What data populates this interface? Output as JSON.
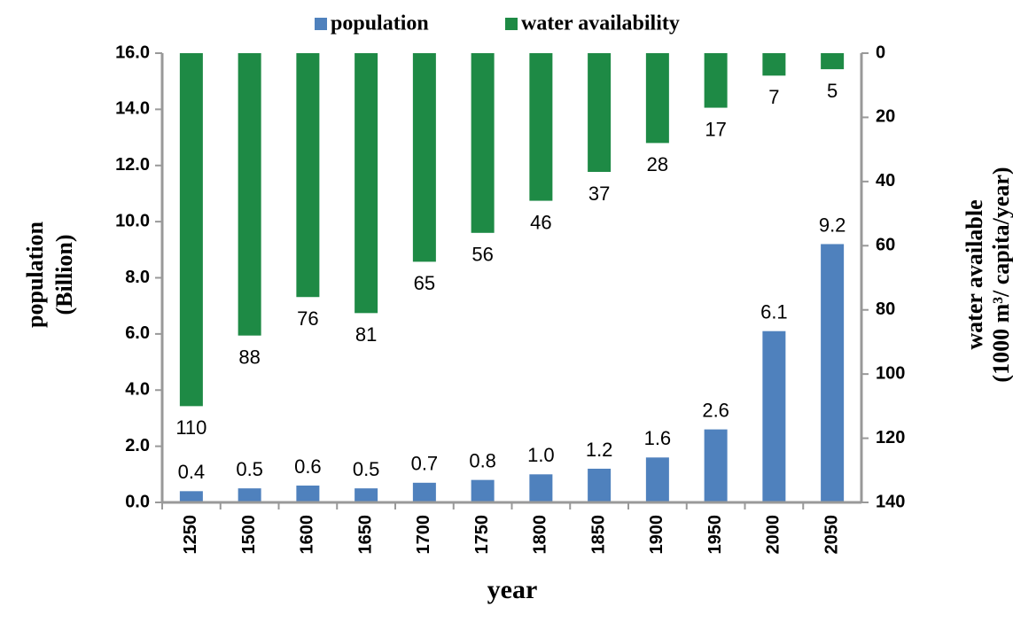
{
  "chart_data": {
    "type": "bar",
    "categories": [
      "1250",
      "1500",
      "1600",
      "1650",
      "1700",
      "1750",
      "1800",
      "1850",
      "1900",
      "1950",
      "2000",
      "2050"
    ],
    "series": [
      {
        "name": "population",
        "color": "#4f81bd",
        "values": [
          0.4,
          0.5,
          0.6,
          0.5,
          0.7,
          0.8,
          1.0,
          1.2,
          1.6,
          2.6,
          6.1,
          9.2
        ],
        "value_labels": [
          "0.4",
          "0.5",
          "0.6",
          "0.5",
          "0.7",
          "0.8",
          "1.0",
          "1.2",
          "1.6",
          "2.6",
          "6.1",
          "9.2"
        ]
      },
      {
        "name": "water availability",
        "color": "#1e8a45",
        "axis": "y2",
        "values": [
          110,
          88,
          76,
          81,
          65,
          56,
          46,
          37,
          28,
          17,
          7,
          5
        ]
      }
    ],
    "xlabel": "year",
    "ylabel": [
      "population",
      "(Billion)"
    ],
    "y2label": [
      "water available",
      "(1000 m³/ capita/year)"
    ],
    "ylim": [
      0,
      16
    ],
    "yticks": [
      {
        "value": 0,
        "label": "0.0"
      },
      {
        "value": 2,
        "label": "2.0"
      },
      {
        "value": 4,
        "label": "4.0"
      },
      {
        "value": 6,
        "label": "6.0"
      },
      {
        "value": 8,
        "label": "8.0"
      },
      {
        "value": 10,
        "label": "10.0"
      },
      {
        "value": 12,
        "label": "12.0"
      },
      {
        "value": 14,
        "label": "14.0"
      },
      {
        "value": 16,
        "label": "16.0"
      }
    ],
    "y2lim": [
      0,
      140
    ],
    "y2_inverted": true,
    "y2ticks": [
      0,
      20,
      40,
      60,
      80,
      100,
      120,
      140
    ],
    "legend": "top",
    "grid": false
  }
}
